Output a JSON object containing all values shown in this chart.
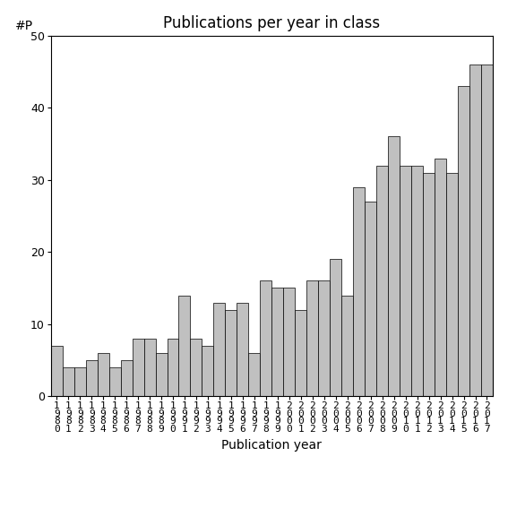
{
  "title": "Publications per year in class",
  "xlabel": "Publication year",
  "ylabel": "#P",
  "years": [
    1980,
    1981,
    1982,
    1983,
    1984,
    1985,
    1986,
    1987,
    1988,
    1989,
    1990,
    1991,
    1992,
    1993,
    1994,
    1995,
    1996,
    1997,
    1998,
    1999,
    2000,
    2001,
    2002,
    2003,
    2004,
    2005,
    2006,
    2007,
    2008,
    2009,
    2010,
    2011,
    2012,
    2013,
    2014,
    2015,
    2016,
    2017
  ],
  "values": [
    7,
    4,
    4,
    5,
    6,
    4,
    5,
    8,
    8,
    6,
    8,
    14,
    8,
    7,
    13,
    12,
    13,
    6,
    16,
    15,
    15,
    12,
    16,
    16,
    19,
    14,
    29,
    27,
    32,
    36,
    32,
    32,
    31,
    33,
    31,
    43,
    46,
    46
  ],
  "ylim": [
    0,
    50
  ],
  "yticks": [
    0,
    10,
    20,
    30,
    40,
    50
  ],
  "bar_color": "#c0c0c0",
  "bar_edge_color": "#000000",
  "background_color": "#ffffff",
  "title_fontsize": 12,
  "label_fontsize": 10,
  "tick_fontsize": 9
}
